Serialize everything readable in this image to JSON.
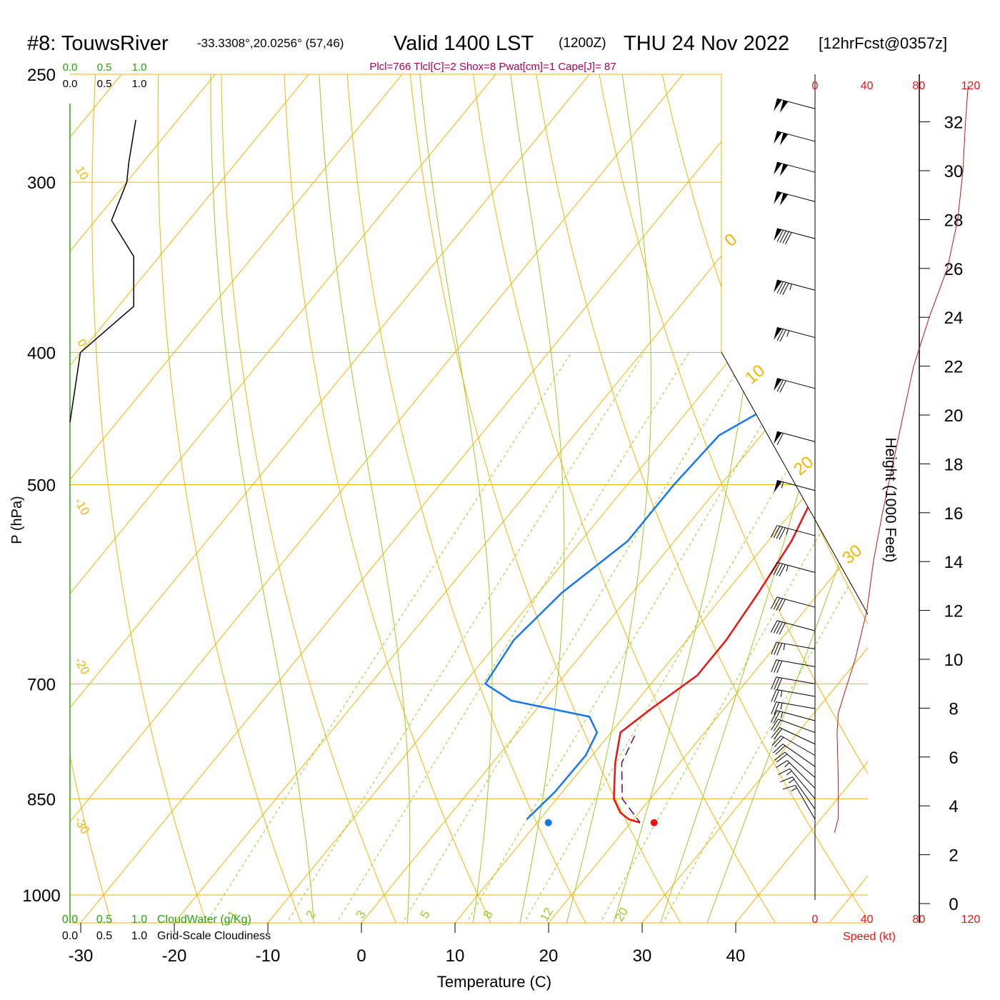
{
  "header": {
    "station": "#8: TouwsRiver",
    "coords": "-33.3308°,20.0256° (57,46)",
    "valid": "Valid 1400 LST",
    "zulu": "(1200Z)",
    "date": "THU 24 Nov 2022",
    "forecast": "[12hrFcst@0357z]",
    "indices": "Plcl=766 Tlcl[C]=2 Shox=8 Pwat[cm]=1 Cape[J]= 87"
  },
  "colors": {
    "temperature": "#ee1111",
    "dewpoint": "#1577ee",
    "parcel": "#660066",
    "isotherm": "#f5b400",
    "dry_adiabat": "#f5b400",
    "moist_adiabat": "#99cc22",
    "mixing_ratio": "#99cc22",
    "indices": "#aa0055",
    "cloudwater": "#22aa00",
    "wind_speed": "#ee1111",
    "height_profile": "#cc1111"
  },
  "chart_data": {
    "type": "skew-t",
    "xlabel": "Temperature (C)",
    "ylabel": "P (hPa)",
    "x_ticks": [
      "-30",
      "-20",
      "-10",
      "0",
      "10",
      "20",
      "30",
      "40"
    ],
    "x_tick_values": [
      -30,
      -20,
      -10,
      0,
      10,
      20,
      30,
      40
    ],
    "p_ticks": [
      "250",
      "300",
      "400",
      "500",
      "700",
      "850",
      "1000"
    ],
    "p_tick_values": [
      250,
      300,
      400,
      500,
      700,
      850,
      1000
    ],
    "p_range": [
      250,
      1000
    ],
    "temperature_profile": [
      {
        "p": 265,
        "t": -0.9
      },
      {
        "p": 285,
        "t": 1.5
      },
      {
        "p": 300,
        "t": 3.0
      },
      {
        "p": 320,
        "t": 4.5
      },
      {
        "p": 340,
        "t": 5.5
      },
      {
        "p": 360,
        "t": 5.9
      },
      {
        "p": 400,
        "t": 6.2
      },
      {
        "p": 430,
        "t": 6.7
      },
      {
        "p": 460,
        "t": 8.2
      },
      {
        "p": 500,
        "t": 10.5
      },
      {
        "p": 550,
        "t": 12.5
      },
      {
        "p": 600,
        "t": 13.5
      },
      {
        "p": 650,
        "t": 14.2
      },
      {
        "p": 690,
        "t": 14.2
      },
      {
        "p": 730,
        "t": 12.2
      },
      {
        "p": 760,
        "t": 11.0
      },
      {
        "p": 800,
        "t": 13.1
      },
      {
        "p": 850,
        "t": 16.1
      },
      {
        "p": 870,
        "t": 18.0
      },
      {
        "p": 880,
        "t": 19.5
      },
      {
        "p": 885,
        "t": 21.0
      }
    ],
    "dewpoint_profile": [
      {
        "p": 260,
        "t": -5.5
      },
      {
        "p": 300,
        "t": -1.5
      },
      {
        "p": 350,
        "t": 1.6
      },
      {
        "p": 370,
        "t": 3.2
      },
      {
        "p": 400,
        "t": 2.7
      },
      {
        "p": 430,
        "t": -0.5
      },
      {
        "p": 460,
        "t": -4.5
      },
      {
        "p": 500,
        "t": -5.0
      },
      {
        "p": 550,
        "t": -5.0
      },
      {
        "p": 600,
        "t": -7.5
      },
      {
        "p": 650,
        "t": -8.5
      },
      {
        "p": 700,
        "t": -7.7
      },
      {
        "p": 720,
        "t": -3.5
      },
      {
        "p": 740,
        "t": 6.3
      },
      {
        "p": 760,
        "t": 8.5
      },
      {
        "p": 790,
        "t": 9.3
      },
      {
        "p": 840,
        "t": 9.2
      },
      {
        "p": 880,
        "t": 8.6
      }
    ],
    "parcel_trace": [
      {
        "p": 764,
        "t": 12.8
      },
      {
        "p": 800,
        "t": 13.8
      },
      {
        "p": 850,
        "t": 17.0
      },
      {
        "p": 885,
        "t": 21.0
      }
    ],
    "surface_temperature_marker": {
      "p": 885,
      "t": 22.5
    },
    "surface_dewpoint_marker": {
      "p": 885,
      "t": 11.2
    },
    "dry_adiabat_labels": [
      "10",
      "0",
      "-10",
      "-20",
      "-30"
    ],
    "right_adiabat_labels": [
      "0",
      "10",
      "20",
      "30"
    ],
    "mixing_ratio_labels": [
      "1",
      "2",
      "3",
      "5",
      "8",
      "12",
      "20"
    ],
    "cloudwater_ticks_top_green": [
      "0.0",
      "0.5",
      "1.0"
    ],
    "cloudiness_ticks_top_black": [
      "0.0",
      "0.5",
      "1.0"
    ],
    "cloudwater_ticks_bottom_green": [
      "0.0",
      "0.5",
      "1.0"
    ],
    "cloudiness_ticks_bottom_black": [
      "0.0",
      "0.5",
      "1.0"
    ],
    "cloudwater_label": "CloudWater (g/Kg)",
    "cloudiness_label": "Grid-Scale Cloudiness",
    "cloudiness_profile": [
      {
        "p": 270,
        "v": 0.95
      },
      {
        "p": 290,
        "v": 0.85
      },
      {
        "p": 300,
        "v": 0.82
      },
      {
        "p": 320,
        "v": 0.6
      },
      {
        "p": 340,
        "v": 0.92
      },
      {
        "p": 370,
        "v": 0.92
      },
      {
        "p": 400,
        "v": 0.15
      },
      {
        "p": 450,
        "v": 0.0
      }
    ],
    "wind_speed_axis_label": "Speed (kt)",
    "wind_speed_ticks": [
      "0",
      "40",
      "80",
      "120"
    ],
    "wind_speed_tick_values": [
      0,
      40,
      80,
      120
    ],
    "height_axis_label": "Height (1000 Feet)",
    "height_ticks": [
      "0",
      "2",
      "4",
      "6",
      "8",
      "10",
      "12",
      "14",
      "16",
      "18",
      "20",
      "22",
      "24",
      "26",
      "28",
      "30",
      "32"
    ],
    "height_tick_values": [
      0,
      2,
      4,
      6,
      8,
      10,
      12,
      14,
      16,
      18,
      20,
      22,
      24,
      26,
      28,
      30,
      32
    ],
    "wind_speed_profile": [
      {
        "h": 2.9,
        "s": 15
      },
      {
        "h": 3.5,
        "s": 18
      },
      {
        "h": 5,
        "s": 18
      },
      {
        "h": 7,
        "s": 17
      },
      {
        "h": 7.8,
        "s": 18
      },
      {
        "h": 8.5,
        "s": 22
      },
      {
        "h": 10,
        "s": 31
      },
      {
        "h": 12,
        "s": 40
      },
      {
        "h": 14,
        "s": 45
      },
      {
        "h": 16,
        "s": 52
      },
      {
        "h": 18,
        "s": 60
      },
      {
        "h": 20,
        "s": 68
      },
      {
        "h": 22,
        "s": 76
      },
      {
        "h": 24,
        "s": 88
      },
      {
        "h": 26,
        "s": 102
      },
      {
        "h": 28,
        "s": 110
      },
      {
        "h": 30,
        "s": 114
      },
      {
        "h": 32,
        "s": 116
      },
      {
        "h": 33.5,
        "s": 118
      }
    ],
    "wind_barbs": [
      {
        "p": 265,
        "spd": 100,
        "dir": 285
      },
      {
        "p": 280,
        "spd": 100,
        "dir": 285
      },
      {
        "p": 295,
        "spd": 100,
        "dir": 285
      },
      {
        "p": 310,
        "spd": 100,
        "dir": 285
      },
      {
        "p": 330,
        "spd": 90,
        "dir": 285
      },
      {
        "p": 360,
        "spd": 85,
        "dir": 285
      },
      {
        "p": 390,
        "spd": 75,
        "dir": 285
      },
      {
        "p": 425,
        "spd": 70,
        "dir": 285
      },
      {
        "p": 465,
        "spd": 60,
        "dir": 285
      },
      {
        "p": 505,
        "spd": 55,
        "dir": 285
      },
      {
        "p": 545,
        "spd": 45,
        "dir": 285
      },
      {
        "p": 580,
        "spd": 45,
        "dir": 285
      },
      {
        "p": 615,
        "spd": 40,
        "dir": 285
      },
      {
        "p": 640,
        "spd": 40,
        "dir": 285
      },
      {
        "p": 660,
        "spd": 35,
        "dir": 280
      },
      {
        "p": 680,
        "spd": 30,
        "dir": 280
      },
      {
        "p": 700,
        "spd": 30,
        "dir": 280
      },
      {
        "p": 715,
        "spd": 25,
        "dir": 280
      },
      {
        "p": 730,
        "spd": 25,
        "dir": 280
      },
      {
        "p": 745,
        "spd": 25,
        "dir": 285
      },
      {
        "p": 760,
        "spd": 20,
        "dir": 290
      },
      {
        "p": 775,
        "spd": 20,
        "dir": 295
      },
      {
        "p": 790,
        "spd": 20,
        "dir": 300
      },
      {
        "p": 805,
        "spd": 20,
        "dir": 305
      },
      {
        "p": 820,
        "spd": 20,
        "dir": 310
      },
      {
        "p": 835,
        "spd": 15,
        "dir": 315
      },
      {
        "p": 850,
        "spd": 15,
        "dir": 320
      },
      {
        "p": 865,
        "spd": 15,
        "dir": 325
      },
      {
        "p": 880,
        "spd": 15,
        "dir": 330
      }
    ]
  }
}
